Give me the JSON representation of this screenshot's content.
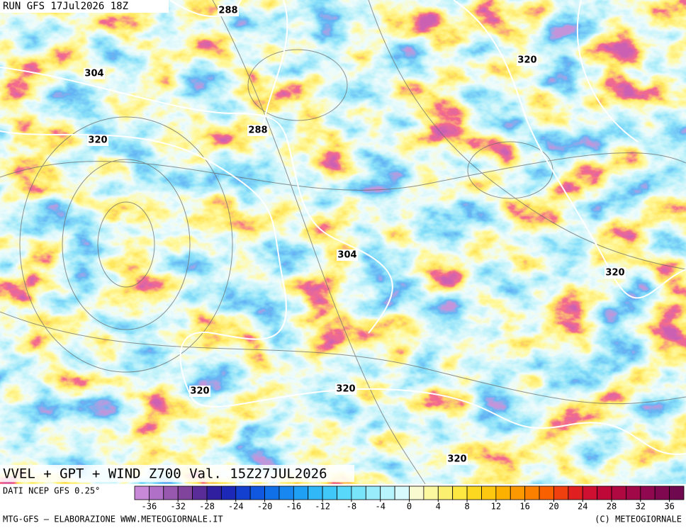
{
  "run_label": "RUN GFS 17Jul2026 18Z",
  "contours": [
    {
      "value": 288
    },
    {
      "value": 304
    },
    {
      "value": 320
    },
    {
      "value": 320
    },
    {
      "value": 288
    },
    {
      "value": 304
    },
    {
      "value": 320
    },
    {
      "value": 320
    },
    {
      "value": 320
    },
    {
      "value": 320
    }
  ],
  "title": "VVEL + GPT + WIND Z700 Val. 15Z27JUL2026",
  "source": "DATI NCEP GFS 0.25°",
  "credit_left": "MTG-GFS – ELABORAZIONE WWW.METEOGIORNALE.IT",
  "credit_right": "(C) METEOGIORNALE",
  "colorbar": {
    "range": [
      -38,
      38
    ],
    "ticks": [
      -36,
      -32,
      -28,
      -24,
      -20,
      -16,
      -12,
      -8,
      -4,
      0,
      4,
      8,
      12,
      16,
      20,
      24,
      28,
      32,
      36
    ],
    "colors": [
      "#c88ad8",
      "#b070c8",
      "#9858b0",
      "#80449c",
      "#5a2c98",
      "#3020a0",
      "#1c28b8",
      "#1440d0",
      "#1058e0",
      "#1070e8",
      "#1888f0",
      "#20a0f4",
      "#30b8f8",
      "#40c8f8",
      "#58d8fa",
      "#78e4fa",
      "#98ecfc",
      "#b8f4fc",
      "#d8fafc",
      "#fafad0",
      "#fcf8a0",
      "#fcf070",
      "#fce840",
      "#fcd820",
      "#fcc810",
      "#fcb000",
      "#fc9800",
      "#fc8000",
      "#f86000",
      "#f04010",
      "#e02020",
      "#d01030",
      "#c00838",
      "#b00840",
      "#a00848",
      "#900850",
      "#800850",
      "#700850"
    ]
  }
}
